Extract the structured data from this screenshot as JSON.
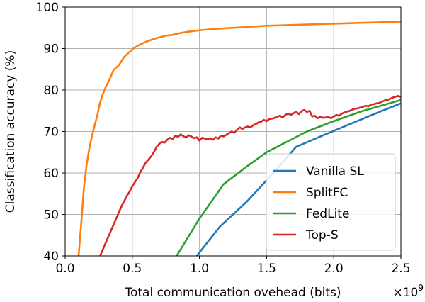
{
  "chart_data": {
    "type": "line",
    "title": "",
    "xlabel": "Total communication ovehead (bits)",
    "ylabel": "Classification accuracy (%)",
    "x_scale_label": "×10",
    "x_scale_exponent": "9",
    "xlim": [
      0.0,
      2.5
    ],
    "ylim": [
      40,
      100
    ],
    "x_ticks": [
      0.0,
      0.5,
      1.0,
      1.5,
      2.0,
      2.5
    ],
    "x_tick_labels": [
      "0.0",
      "0.5",
      "1.0",
      "1.5",
      "2.0",
      "2.5"
    ],
    "y_ticks": [
      40,
      50,
      60,
      70,
      80,
      90,
      100
    ],
    "y_tick_labels": [
      "40",
      "50",
      "60",
      "70",
      "80",
      "90",
      "100"
    ],
    "grid": true,
    "legend_position": "lower-right",
    "series": [
      {
        "name": "Vanilla SL",
        "color": "#1f77b4",
        "x": [
          0.98,
          1.15,
          1.35,
          1.55,
          1.72,
          1.9,
          2.1,
          2.3,
          2.5
        ],
        "y": [
          40.0,
          47.0,
          53.0,
          60.0,
          66.3,
          68.8,
          71.5,
          74.2,
          76.8
        ]
      },
      {
        "name": "SplitFC",
        "color": "#ff7f0e",
        "x": [
          0.1,
          0.12,
          0.14,
          0.16,
          0.18,
          0.2,
          0.22,
          0.24,
          0.26,
          0.28,
          0.3,
          0.33,
          0.36,
          0.4,
          0.44,
          0.48,
          0.52,
          0.56,
          0.6,
          0.65,
          0.7,
          0.75,
          0.8,
          0.85,
          0.9,
          0.95,
          1.0,
          1.1,
          1.2,
          1.3,
          1.4,
          1.5,
          1.6,
          1.7,
          1.8,
          1.9,
          2.0,
          2.1,
          2.2,
          2.3,
          2.4,
          2.5
        ],
        "y": [
          40.0,
          48.0,
          56.5,
          62.0,
          66.0,
          69.0,
          71.5,
          74.0,
          77.0,
          79.0,
          80.5,
          82.5,
          84.8,
          86.0,
          88.0,
          89.2,
          90.3,
          91.0,
          91.6,
          92.2,
          92.7,
          93.1,
          93.3,
          93.7,
          94.0,
          94.2,
          94.4,
          94.7,
          94.9,
          95.1,
          95.3,
          95.5,
          95.6,
          95.7,
          95.8,
          95.9,
          96.0,
          96.1,
          96.2,
          96.3,
          96.4,
          96.5
        ]
      },
      {
        "name": "FedLite",
        "color": "#2ca02c",
        "x": [
          0.83,
          1.0,
          1.18,
          1.35,
          1.5,
          1.65,
          1.8,
          2.0,
          2.2,
          2.35,
          2.5
        ],
        "y": [
          40.0,
          49.0,
          57.3,
          61.5,
          65.0,
          67.5,
          70.0,
          72.5,
          74.8,
          76.2,
          77.6
        ]
      },
      {
        "name": "Top-S",
        "color": "#d62728",
        "x": [
          0.26,
          0.28,
          0.3,
          0.32,
          0.34,
          0.36,
          0.38,
          0.4,
          0.42,
          0.44,
          0.46,
          0.48,
          0.5,
          0.52,
          0.54,
          0.56,
          0.58,
          0.6,
          0.62,
          0.64,
          0.66,
          0.68,
          0.7,
          0.72,
          0.74,
          0.76,
          0.78,
          0.8,
          0.82,
          0.84,
          0.86,
          0.88,
          0.9,
          0.92,
          0.94,
          0.96,
          0.98,
          1.0,
          1.02,
          1.04,
          1.06,
          1.08,
          1.1,
          1.12,
          1.14,
          1.16,
          1.18,
          1.2,
          1.22,
          1.24,
          1.26,
          1.28,
          1.3,
          1.32,
          1.34,
          1.36,
          1.38,
          1.4,
          1.42,
          1.44,
          1.46,
          1.48,
          1.5,
          1.52,
          1.54,
          1.56,
          1.58,
          1.6,
          1.62,
          1.64,
          1.66,
          1.68,
          1.7,
          1.72,
          1.74,
          1.76,
          1.78,
          1.8,
          1.82,
          1.84,
          1.86,
          1.88,
          1.9,
          1.92,
          1.94,
          1.96,
          1.98,
          2.0,
          2.02,
          2.04,
          2.06,
          2.08,
          2.1,
          2.12,
          2.14,
          2.16,
          2.18,
          2.2,
          2.22,
          2.24,
          2.26,
          2.28,
          2.3,
          2.32,
          2.34,
          2.36,
          2.38,
          2.4,
          2.42,
          2.44,
          2.46,
          2.48,
          2.5
        ],
        "y": [
          40.0,
          41.5,
          43.0,
          44.5,
          46.0,
          47.5,
          49.0,
          50.5,
          52.0,
          53.2,
          54.5,
          55.5,
          56.8,
          57.8,
          58.8,
          60.2,
          61.3,
          62.5,
          63.2,
          64.0,
          65.0,
          66.2,
          67.0,
          67.5,
          67.3,
          68.0,
          68.5,
          68.2,
          69.0,
          68.7,
          69.3,
          68.9,
          68.5,
          69.1,
          68.8,
          68.4,
          68.6,
          67.8,
          68.5,
          68.3,
          68.1,
          68.4,
          68.0,
          68.6,
          68.3,
          69.0,
          68.8,
          69.2,
          69.6,
          70.0,
          69.7,
          70.4,
          71.0,
          70.6,
          71.0,
          71.2,
          71.0,
          71.5,
          71.8,
          72.2,
          72.4,
          72.8,
          72.5,
          73.0,
          73.1,
          73.3,
          73.6,
          73.8,
          73.4,
          74.0,
          74.3,
          74.0,
          74.4,
          74.8,
          74.2,
          74.9,
          75.2,
          74.7,
          75.0,
          73.6,
          73.8,
          73.2,
          73.6,
          73.3,
          73.4,
          73.5,
          73.2,
          73.6,
          74.0,
          73.8,
          74.3,
          74.6,
          74.8,
          75.0,
          75.3,
          75.5,
          75.6,
          75.8,
          76.0,
          76.2,
          76.1,
          76.5,
          76.6,
          76.8,
          76.9,
          77.2,
          77.5,
          77.6,
          77.9,
          78.2,
          78.4,
          78.6,
          78.3
        ]
      }
    ]
  }
}
